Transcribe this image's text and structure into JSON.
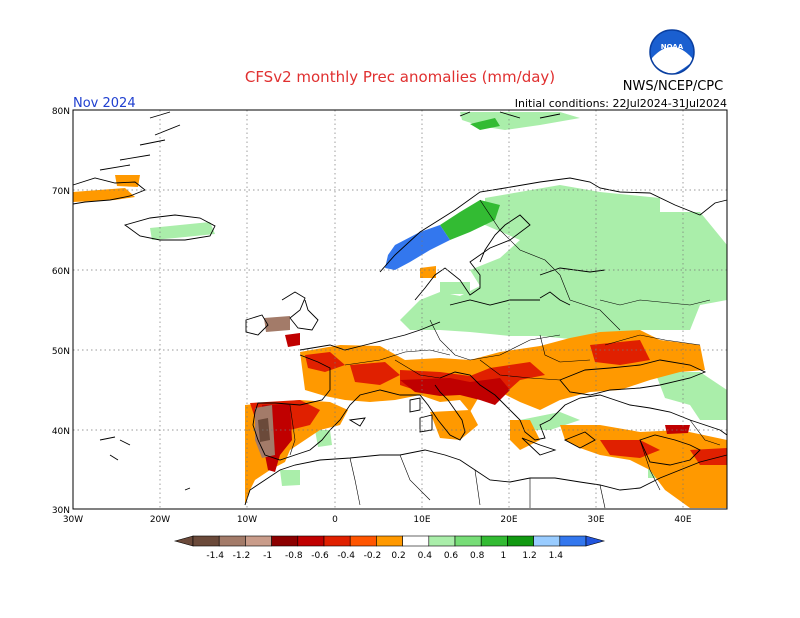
{
  "title": "CFSv2 monthly Prec anomalies (mm/day)",
  "month": "Nov 2024",
  "initial_conditions": "Initial conditions: 22Jul2024-31Jul2024",
  "agency": "NWS/NCEP/CPC",
  "logo_text": "NOAA",
  "lat_labels": [
    "80N",
    "70N",
    "60N",
    "50N",
    "40N",
    "30N"
  ],
  "lon_labels": [
    "30W",
    "20W",
    "10W",
    "0",
    "10E",
    "20E",
    "30E",
    "40E"
  ],
  "colorbar": {
    "labels": [
      "-1.4",
      "-1.2",
      "-1",
      "-0.8",
      "-0.6",
      "-0.4",
      "-0.2",
      "0.2",
      "0.4",
      "0.6",
      "0.8",
      "1",
      "1.2",
      "1.4"
    ],
    "colors": [
      "#6b4a3a",
      "#a37b69",
      "#c99c8a",
      "#8c0000",
      "#c00000",
      "#e02000",
      "#ff5500",
      "#ff9900",
      "#ffffff",
      "#aaeeaa",
      "#77dd77",
      "#33bb33",
      "#119911",
      "#99ccff",
      "#3377ee"
    ],
    "low_end_color": "#6b4a3a",
    "high_end_color": "#2255dd"
  },
  "colors": {
    "title": "#e03030",
    "month": "#2040d0",
    "text": "#000000"
  }
}
